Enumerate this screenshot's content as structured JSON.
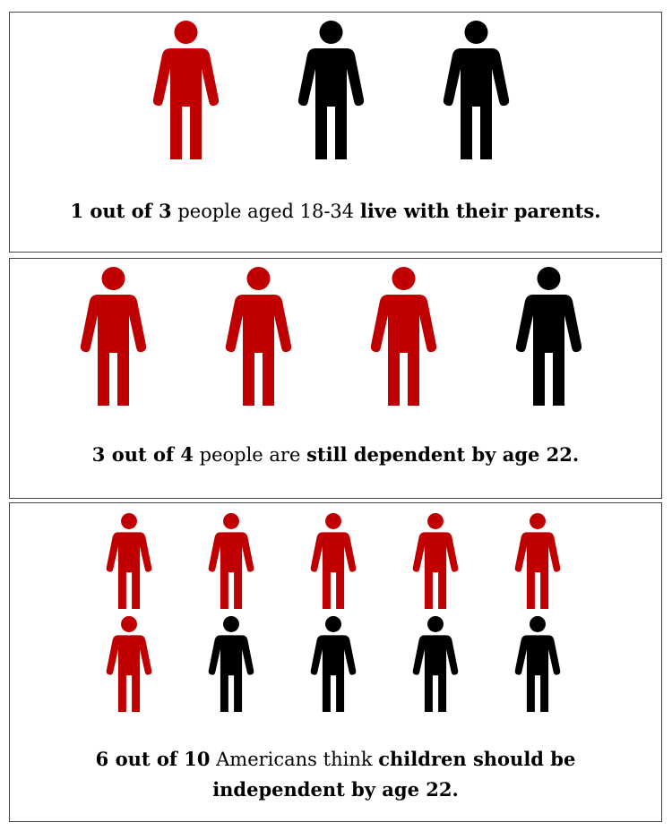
{
  "panels": [
    {
      "icons": {
        "highlighted": 1,
        "total": 3,
        "highlight_color": "#c00000",
        "other_color": "#000000"
      },
      "text": [
        {
          "text": "1 out of 3",
          "bold": true
        },
        {
          "text": " people aged 18-34 ",
          "bold": false
        },
        {
          "text": "live with their parents.",
          "bold": true
        }
      ]
    },
    {
      "icons": {
        "highlighted": 3,
        "total": 4,
        "highlight_color": "#c00000",
        "other_color": "#000000"
      },
      "text": [
        {
          "text": "3 out of 4",
          "bold": true
        },
        {
          "text": " people are ",
          "bold": false
        },
        {
          "text": "still dependent by age 22.",
          "bold": true
        }
      ]
    },
    {
      "icons": {
        "highlighted": 6,
        "total": 10,
        "highlight_color": "#c00000",
        "other_color": "#000000"
      },
      "text": [
        {
          "text": "6 out of 10",
          "bold": true
        },
        {
          "text": " Americans think ",
          "bold": false
        },
        {
          "text": "children should be independent by age 22.",
          "bold": true
        }
      ]
    }
  ]
}
